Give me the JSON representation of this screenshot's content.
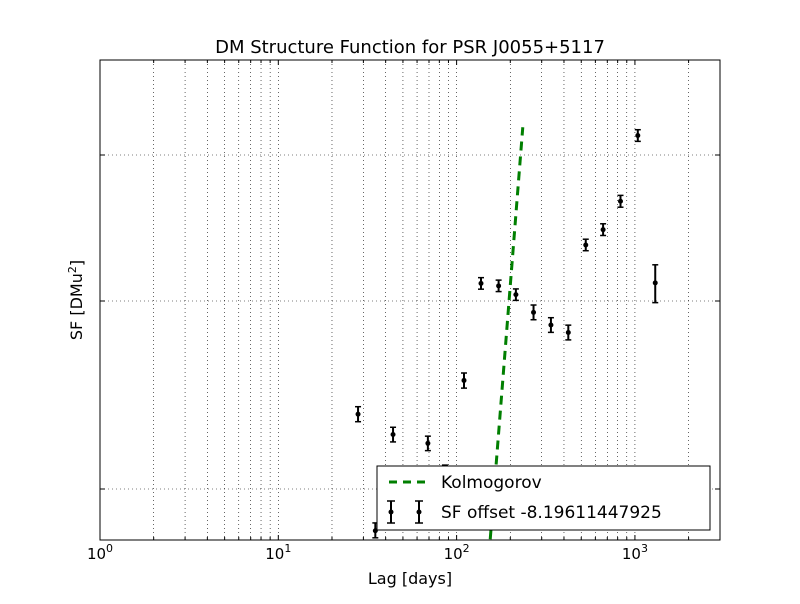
{
  "chart_data": {
    "type": "scatter",
    "title": "DM Structure Function for PSR J0055+5117",
    "xlabel": "Lag [days]",
    "ylabel_main": "SF [DMu",
    "ylabel_sup": "2",
    "ylabel_close": "]",
    "x_scale": "log",
    "y_scale": "log",
    "xlim": [
      1,
      3000
    ],
    "grid": true,
    "legend_position": "lower-right",
    "x_ticks": [
      {
        "value": 1,
        "base": "10",
        "exp": "0"
      },
      {
        "value": 10,
        "base": "10",
        "exp": "1"
      },
      {
        "value": 100,
        "base": "10",
        "exp": "2"
      },
      {
        "value": 1000,
        "base": "10",
        "exp": "3"
      }
    ],
    "series": [
      {
        "name": "SF offset -8.19611447925",
        "type": "errorbar",
        "color": "#000000",
        "x": [
          28,
          35,
          44,
          69,
          86,
          110,
          137,
          172,
          215,
          270,
          338,
          423,
          530,
          663,
          830,
          1038,
          1300
        ],
        "y": [
          0.025,
          0.006,
          0.0195,
          0.0175,
          0.0122,
          0.0378,
          0.132,
          0.127,
          0.1105,
          0.087,
          0.0745,
          0.068,
          0.242,
          0.308,
          0.482,
          1.36,
          0.133
        ],
        "yerr_low": [
          0.0022,
          0.0005,
          0.0017,
          0.0015,
          0.0011,
          0.0034,
          0.0115,
          0.011,
          0.0095,
          0.0075,
          0.0064,
          0.0059,
          0.021,
          0.027,
          0.043,
          0.12,
          0.035
        ],
        "yerr_high": [
          0.0024,
          0.0006,
          0.0018,
          0.0016,
          0.0012,
          0.0036,
          0.0125,
          0.012,
          0.0105,
          0.0082,
          0.007,
          0.0064,
          0.023,
          0.03,
          0.047,
          0.13,
          0.044
        ]
      },
      {
        "name": "Kolmogorov",
        "type": "line",
        "style": "dashed",
        "color": "#007f00",
        "x": [
          152,
          235
        ],
        "y": [
          0.0045,
          1.55
        ]
      }
    ]
  }
}
